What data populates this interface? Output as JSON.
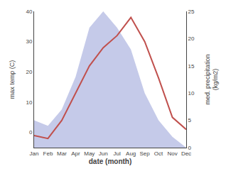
{
  "chart_data": {
    "type": "line",
    "xlabel": "date (month)",
    "ylabel": "max temp (C)",
    "y2label": "med. precipitation\n(kg/m2)",
    "categories": [
      "Jan",
      "Feb",
      "Mar",
      "Apr",
      "May",
      "Jun",
      "Jul",
      "Aug",
      "Sep",
      "Oct",
      "Nov",
      "Dec"
    ],
    "series": [
      {
        "type": "area",
        "axis": "y2",
        "color": "#c5cae9",
        "values": [
          5,
          4,
          7,
          13,
          22,
          25,
          22,
          18,
          10,
          5,
          2,
          0
        ]
      },
      {
        "type": "line",
        "color": "#c0504d",
        "values": [
          -1,
          -2,
          4,
          13,
          22,
          28,
          32,
          38,
          30,
          18,
          5,
          1
        ]
      }
    ],
    "ylim": [
      -5,
      40
    ],
    "yticks": [
      0,
      10,
      20,
      30,
      40
    ],
    "y2lim": [
      0,
      25
    ],
    "y2ticks": [
      0,
      5,
      10,
      15,
      20,
      25
    ],
    "grid": false
  }
}
